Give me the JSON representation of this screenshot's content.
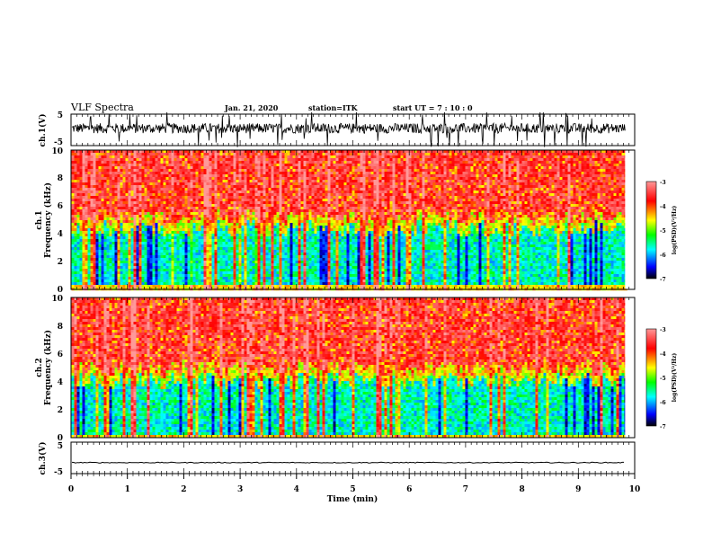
{
  "header": {
    "title": "VLF Spectra",
    "date": "Jan. 21, 2020",
    "station": "station=ITK",
    "start": "start UT =   7 : 10 : 0"
  },
  "chart_data": [
    {
      "type": "line",
      "name": "waveform-ch1",
      "ylabel": "ch.1(V)",
      "ylim": [
        -5,
        5
      ],
      "y_ticks": [
        "5",
        "-5"
      ],
      "xlim": [
        0,
        10
      ],
      "baseline": 0.5,
      "note": "noisy waveform with frequent spikes"
    },
    {
      "type": "heatmap",
      "name": "spectrogram-ch1",
      "ylabel": "ch.1\nFrequency (kHz)",
      "ylabel_line1": "ch.1",
      "ylabel_line2": "Frequency (kHz)",
      "ylim": [
        0,
        10
      ],
      "y_ticks": [
        "0",
        "2",
        "4",
        "6",
        "8",
        "10"
      ],
      "xlim": [
        0,
        9.83
      ],
      "colorbar": {
        "label": "log(PSD)(V²/Hz)",
        "ticks": [
          "-3",
          "-4",
          "-5",
          "-6",
          "-7"
        ],
        "range": [
          -7,
          -3
        ]
      },
      "low_band_top_khz": 4.5
    },
    {
      "type": "heatmap",
      "name": "spectrogram-ch2",
      "ylabel_line1": "ch.2",
      "ylabel_line2": "Frequency (kHz)",
      "ylim": [
        0,
        10
      ],
      "y_ticks": [
        "0",
        "2",
        "4",
        "6",
        "8",
        "10"
      ],
      "xlim": [
        0,
        9.83
      ],
      "colorbar": {
        "label": "log(PSD)(V²/Hz)",
        "ticks": [
          "-3",
          "-4",
          "-5",
          "-6",
          "-7"
        ],
        "range": [
          -7,
          -3
        ]
      },
      "low_band_top_khz": 4.2
    },
    {
      "type": "line",
      "name": "waveform-ch3",
      "ylabel": "ch.3(V)",
      "ylim": [
        -5,
        5
      ],
      "y_ticks": [
        "5",
        "-5"
      ],
      "xlim": [
        0,
        10
      ],
      "baseline": -1.5,
      "note": "nearly flat trace"
    }
  ],
  "x_axis": {
    "label": "Time (min)",
    "range": [
      0,
      10
    ],
    "ticks": [
      "0",
      "1",
      "2",
      "3",
      "4",
      "5",
      "6",
      "7",
      "8",
      "9",
      "10"
    ]
  },
  "colors": {
    "background": "#ffffff",
    "axes": "#000000",
    "colormap": [
      "#000000",
      "#0000ff",
      "#00ffff",
      "#00ff00",
      "#ffff00",
      "#ff0000",
      "#ff9999"
    ]
  }
}
